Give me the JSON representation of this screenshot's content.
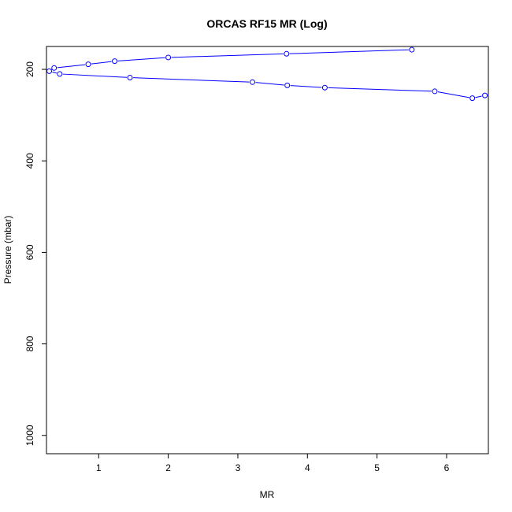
{
  "chart_data": {
    "type": "line",
    "title": "ORCAS RF15 MR (Log)",
    "xlabel": "MR",
    "ylabel": "Pressure (mbar)",
    "xlim": [
      0.25,
      6.6
    ],
    "ylim": [
      1040,
      150
    ],
    "y_reversed": true,
    "x_ticks": [
      1,
      2,
      3,
      4,
      5,
      6
    ],
    "y_ticks": [
      200,
      400,
      600,
      800,
      1000
    ],
    "x_tick_labels": [
      "1",
      "2",
      "3",
      "4",
      "5",
      "6"
    ],
    "y_tick_labels": [
      "200",
      "400",
      "600",
      "800",
      "1000"
    ],
    "grid": false,
    "legend": "none",
    "series_color": "#0000ff",
    "series": [
      {
        "x": [
          6.55,
          6.37,
          5.83,
          4.25,
          3.71,
          3.21,
          1.45,
          0.44,
          0.29,
          0.36,
          0.85,
          1.23,
          2.0,
          3.7,
          5.5
        ],
        "y": [
          257,
          263,
          248,
          240,
          235,
          228,
          218,
          210,
          204,
          197,
          189,
          182,
          174,
          166,
          157
        ]
      }
    ]
  }
}
